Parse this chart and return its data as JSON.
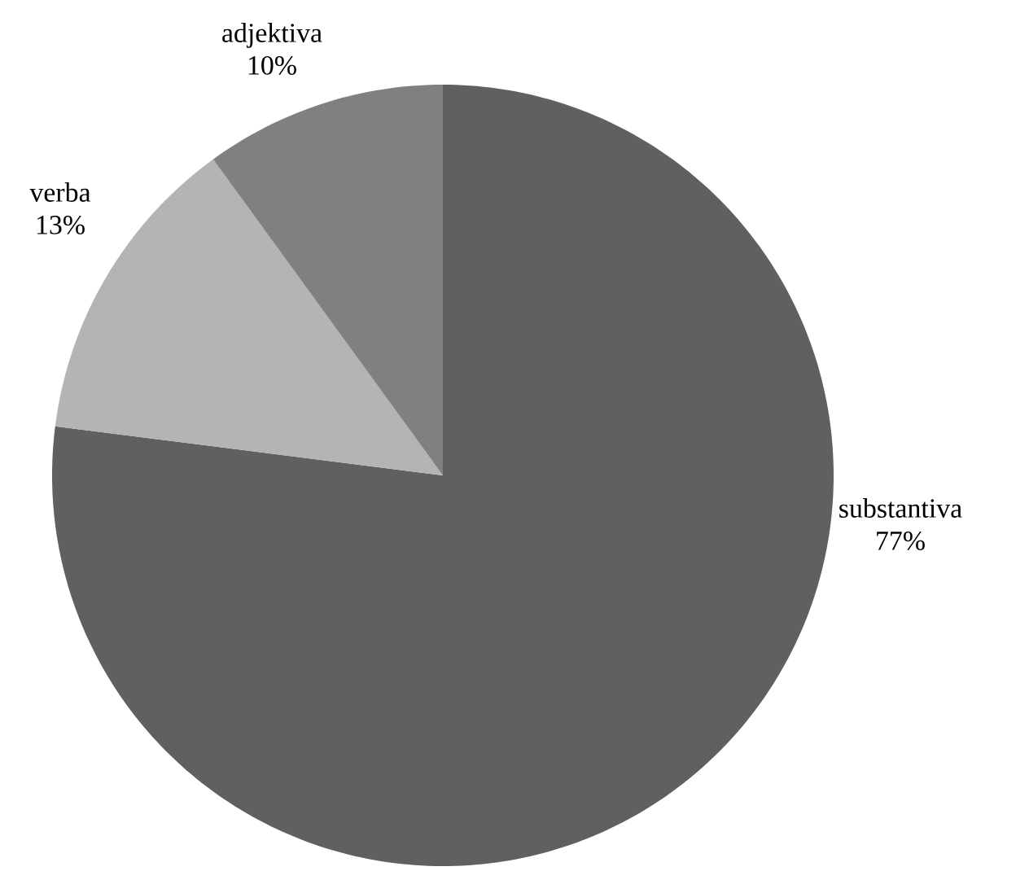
{
  "chart_data": {
    "type": "pie",
    "categories": [
      "substantiva",
      "verba",
      "adjektiva"
    ],
    "values": [
      77,
      13,
      10
    ],
    "value_labels": [
      "77%",
      "13%",
      "10%"
    ],
    "colors": [
      "#606060",
      "#b4b4b4",
      "#808080"
    ]
  }
}
